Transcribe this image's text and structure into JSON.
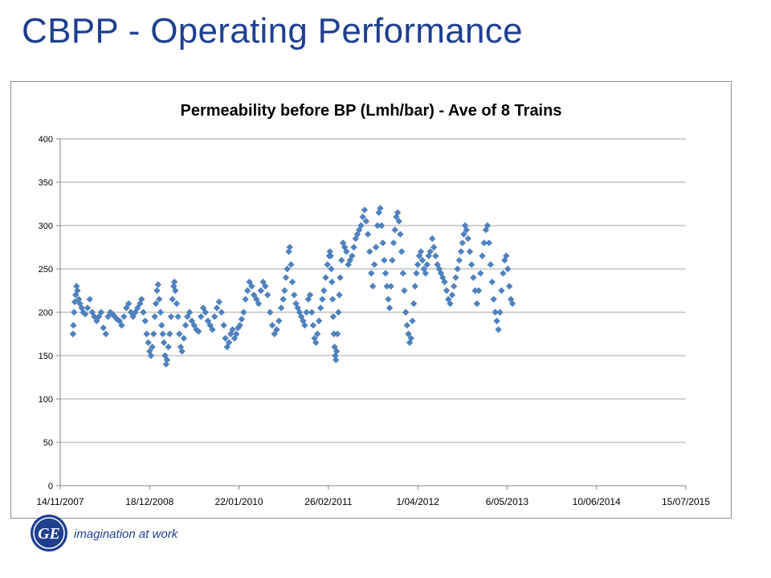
{
  "slide": {
    "title": "CBPP - Operating Performance",
    "tagline": "imagination at work",
    "logo_icon": "ge-monogram-logo",
    "logo_text": "GE",
    "brand_color": "#1f3f8f"
  },
  "chart_data": {
    "type": "scatter",
    "title": "Permeability before BP (Lmh/bar)  - Ave of 8 Trains",
    "xlabel": "",
    "ylabel": "",
    "x_axis_type": "date",
    "xlim": [
      "2007-11-14",
      "2015-07-15"
    ],
    "ylim": [
      0,
      400
    ],
    "x_ticks": [
      "14/11/2007",
      "18/12/2008",
      "22/01/2010",
      "26/02/2011",
      "1/04/2012",
      "6/05/2013",
      "10/06/2014",
      "15/07/2015"
    ],
    "y_ticks": [
      0,
      50,
      100,
      150,
      200,
      250,
      300,
      350,
      400
    ],
    "grid": "horizontal",
    "legend": "none",
    "marker": "diamond",
    "marker_color": "#4f81bd",
    "series": [
      {
        "points": [
          [
            "2008-01-10",
            175
          ],
          [
            "2008-01-12",
            185
          ],
          [
            "2008-01-15",
            200
          ],
          [
            "2008-01-18",
            212
          ],
          [
            "2008-01-22",
            220
          ],
          [
            "2008-01-26",
            230
          ],
          [
            "2008-01-30",
            225
          ],
          [
            "2008-02-05",
            215
          ],
          [
            "2008-02-10",
            210
          ],
          [
            "2008-02-18",
            205
          ],
          [
            "2008-02-25",
            200
          ],
          [
            "2008-03-05",
            198
          ],
          [
            "2008-03-15",
            205
          ],
          [
            "2008-03-25",
            215
          ],
          [
            "2008-04-05",
            200
          ],
          [
            "2008-04-15",
            195
          ],
          [
            "2008-04-25",
            190
          ],
          [
            "2008-05-05",
            195
          ],
          [
            "2008-05-15",
            200
          ],
          [
            "2008-05-25",
            182
          ],
          [
            "2008-06-05",
            175
          ],
          [
            "2008-06-15",
            195
          ],
          [
            "2008-06-25",
            200
          ],
          [
            "2008-07-05",
            198
          ],
          [
            "2008-07-15",
            195
          ],
          [
            "2008-07-25",
            192
          ],
          [
            "2008-08-05",
            190
          ],
          [
            "2008-08-15",
            185
          ],
          [
            "2008-08-25",
            195
          ],
          [
            "2008-09-05",
            205
          ],
          [
            "2008-09-15",
            210
          ],
          [
            "2008-09-25",
            200
          ],
          [
            "2008-10-05",
            195
          ],
          [
            "2008-10-15",
            200
          ],
          [
            "2008-10-25",
            205
          ],
          [
            "2008-11-05",
            210
          ],
          [
            "2008-11-12",
            215
          ],
          [
            "2008-11-20",
            200
          ],
          [
            "2008-11-28",
            190
          ],
          [
            "2008-12-05",
            175
          ],
          [
            "2008-12-12",
            165
          ],
          [
            "2008-12-18",
            155
          ],
          [
            "2008-12-24",
            150
          ],
          [
            "2008-12-30",
            160
          ],
          [
            "2009-01-05",
            175
          ],
          [
            "2009-01-10",
            195
          ],
          [
            "2009-01-15",
            210
          ],
          [
            "2009-01-20",
            225
          ],
          [
            "2009-01-25",
            232
          ],
          [
            "2009-01-30",
            215
          ],
          [
            "2009-02-05",
            200
          ],
          [
            "2009-02-10",
            185
          ],
          [
            "2009-02-15",
            175
          ],
          [
            "2009-02-20",
            165
          ],
          [
            "2009-02-25",
            150
          ],
          [
            "2009-03-02",
            140
          ],
          [
            "2009-03-06",
            145
          ],
          [
            "2009-03-12",
            160
          ],
          [
            "2009-03-18",
            175
          ],
          [
            "2009-03-24",
            195
          ],
          [
            "2009-03-30",
            215
          ],
          [
            "2009-04-05",
            230
          ],
          [
            "2009-04-08",
            235
          ],
          [
            "2009-04-12",
            225
          ],
          [
            "2009-04-18",
            210
          ],
          [
            "2009-04-24",
            195
          ],
          [
            "2009-04-30",
            175
          ],
          [
            "2009-05-06",
            160
          ],
          [
            "2009-05-12",
            155
          ],
          [
            "2009-05-20",
            170
          ],
          [
            "2009-05-28",
            185
          ],
          [
            "2009-06-05",
            195
          ],
          [
            "2009-06-15",
            200
          ],
          [
            "2009-06-25",
            190
          ],
          [
            "2009-07-05",
            185
          ],
          [
            "2009-07-15",
            180
          ],
          [
            "2009-07-25",
            178
          ],
          [
            "2009-08-05",
            195
          ],
          [
            "2009-08-15",
            205
          ],
          [
            "2009-08-25",
            200
          ],
          [
            "2009-09-05",
            190
          ],
          [
            "2009-09-15",
            185
          ],
          [
            "2009-09-25",
            180
          ],
          [
            "2009-10-05",
            195
          ],
          [
            "2009-10-15",
            205
          ],
          [
            "2009-10-25",
            212
          ],
          [
            "2009-11-05",
            200
          ],
          [
            "2009-11-15",
            185
          ],
          [
            "2009-11-22",
            170
          ],
          [
            "2009-11-30",
            160
          ],
          [
            "2009-12-08",
            165
          ],
          [
            "2009-12-16",
            175
          ],
          [
            "2009-12-24",
            180
          ],
          [
            "2010-01-02",
            170
          ],
          [
            "2010-01-10",
            175
          ],
          [
            "2010-01-18",
            182
          ],
          [
            "2010-01-26",
            185
          ],
          [
            "2010-02-03",
            192
          ],
          [
            "2010-02-12",
            200
          ],
          [
            "2010-02-20",
            215
          ],
          [
            "2010-03-01",
            225
          ],
          [
            "2010-03-10",
            235
          ],
          [
            "2010-03-20",
            230
          ],
          [
            "2010-03-30",
            220
          ],
          [
            "2010-04-10",
            215
          ],
          [
            "2010-04-20",
            210
          ],
          [
            "2010-04-30",
            225
          ],
          [
            "2010-05-10",
            235
          ],
          [
            "2010-05-20",
            230
          ],
          [
            "2010-05-30",
            220
          ],
          [
            "2010-06-10",
            200
          ],
          [
            "2010-06-20",
            185
          ],
          [
            "2010-06-30",
            175
          ],
          [
            "2010-07-10",
            180
          ],
          [
            "2010-07-20",
            190
          ],
          [
            "2010-07-30",
            205
          ],
          [
            "2010-08-08",
            215
          ],
          [
            "2010-08-14",
            225
          ],
          [
            "2010-08-20",
            240
          ],
          [
            "2010-08-26",
            250
          ],
          [
            "2010-09-02",
            270
          ],
          [
            "2010-09-06",
            275
          ],
          [
            "2010-09-12",
            255
          ],
          [
            "2010-09-18",
            235
          ],
          [
            "2010-09-26",
            220
          ],
          [
            "2010-10-04",
            210
          ],
          [
            "2010-10-12",
            205
          ],
          [
            "2010-10-20",
            200
          ],
          [
            "2010-10-28",
            195
          ],
          [
            "2010-11-05",
            190
          ],
          [
            "2010-11-12",
            185
          ],
          [
            "2010-11-20",
            200
          ],
          [
            "2010-11-28",
            215
          ],
          [
            "2010-12-06",
            220
          ],
          [
            "2010-12-14",
            200
          ],
          [
            "2010-12-20",
            185
          ],
          [
            "2010-12-26",
            170
          ],
          [
            "2011-01-01",
            165
          ],
          [
            "2011-01-08",
            175
          ],
          [
            "2011-01-15",
            190
          ],
          [
            "2011-01-22",
            205
          ],
          [
            "2011-01-30",
            215
          ],
          [
            "2011-02-06",
            225
          ],
          [
            "2011-02-14",
            240
          ],
          [
            "2011-02-22",
            255
          ],
          [
            "2011-03-02",
            265
          ],
          [
            "2011-03-05",
            270
          ],
          [
            "2011-03-08",
            265
          ],
          [
            "2011-03-11",
            250
          ],
          [
            "2011-03-14",
            235
          ],
          [
            "2011-03-17",
            215
          ],
          [
            "2011-03-20",
            195
          ],
          [
            "2011-03-23",
            175
          ],
          [
            "2011-03-26",
            160
          ],
          [
            "2011-03-29",
            150
          ],
          [
            "2011-04-01",
            145
          ],
          [
            "2011-04-04",
            155
          ],
          [
            "2011-04-08",
            175
          ],
          [
            "2011-04-12",
            200
          ],
          [
            "2011-04-16",
            220
          ],
          [
            "2011-04-20",
            240
          ],
          [
            "2011-04-26",
            260
          ],
          [
            "2011-05-03",
            280
          ],
          [
            "2011-05-10",
            275
          ],
          [
            "2011-05-18",
            270
          ],
          [
            "2011-05-26",
            255
          ],
          [
            "2011-06-03",
            260
          ],
          [
            "2011-06-12",
            265
          ],
          [
            "2011-06-20",
            275
          ],
          [
            "2011-06-28",
            285
          ],
          [
            "2011-07-06",
            290
          ],
          [
            "2011-07-14",
            295
          ],
          [
            "2011-07-22",
            300
          ],
          [
            "2011-07-30",
            310
          ],
          [
            "2011-08-07",
            318
          ],
          [
            "2011-08-14",
            305
          ],
          [
            "2011-08-22",
            290
          ],
          [
            "2011-08-30",
            270
          ],
          [
            "2011-09-06",
            245
          ],
          [
            "2011-09-13",
            230
          ],
          [
            "2011-09-20",
            255
          ],
          [
            "2011-09-27",
            275
          ],
          [
            "2011-10-04",
            300
          ],
          [
            "2011-10-10",
            315
          ],
          [
            "2011-10-16",
            320
          ],
          [
            "2011-10-22",
            300
          ],
          [
            "2011-10-28",
            280
          ],
          [
            "2011-11-03",
            260
          ],
          [
            "2011-11-09",
            245
          ],
          [
            "2011-11-15",
            230
          ],
          [
            "2011-11-21",
            215
          ],
          [
            "2011-11-27",
            205
          ],
          [
            "2011-12-03",
            230
          ],
          [
            "2011-12-09",
            260
          ],
          [
            "2011-12-15",
            280
          ],
          [
            "2011-12-21",
            295
          ],
          [
            "2011-12-27",
            310
          ],
          [
            "2012-01-02",
            315
          ],
          [
            "2012-01-08",
            305
          ],
          [
            "2012-01-14",
            290
          ],
          [
            "2012-01-20",
            270
          ],
          [
            "2012-01-26",
            245
          ],
          [
            "2012-02-01",
            225
          ],
          [
            "2012-02-07",
            200
          ],
          [
            "2012-02-13",
            185
          ],
          [
            "2012-02-19",
            175
          ],
          [
            "2012-02-25",
            165
          ],
          [
            "2012-03-02",
            170
          ],
          [
            "2012-03-08",
            190
          ],
          [
            "2012-03-14",
            210
          ],
          [
            "2012-03-20",
            230
          ],
          [
            "2012-03-26",
            245
          ],
          [
            "2012-04-01",
            255
          ],
          [
            "2012-04-08",
            265
          ],
          [
            "2012-04-15",
            270
          ],
          [
            "2012-04-22",
            260
          ],
          [
            "2012-04-29",
            250
          ],
          [
            "2012-05-06",
            245
          ],
          [
            "2012-05-13",
            255
          ],
          [
            "2012-05-20",
            265
          ],
          [
            "2012-05-27",
            270
          ],
          [
            "2012-06-05",
            285
          ],
          [
            "2012-06-12",
            275
          ],
          [
            "2012-06-20",
            265
          ],
          [
            "2012-06-28",
            255
          ],
          [
            "2012-07-06",
            250
          ],
          [
            "2012-07-14",
            245
          ],
          [
            "2012-07-22",
            240
          ],
          [
            "2012-07-30",
            235
          ],
          [
            "2012-08-08",
            225
          ],
          [
            "2012-08-16",
            215
          ],
          [
            "2012-08-24",
            210
          ],
          [
            "2012-09-02",
            220
          ],
          [
            "2012-09-10",
            230
          ],
          [
            "2012-09-18",
            240
          ],
          [
            "2012-09-26",
            250
          ],
          [
            "2012-10-04",
            260
          ],
          [
            "2012-10-12",
            270
          ],
          [
            "2012-10-18",
            280
          ],
          [
            "2012-10-24",
            290
          ],
          [
            "2012-10-30",
            300
          ],
          [
            "2012-11-05",
            295
          ],
          [
            "2012-11-12",
            285
          ],
          [
            "2012-11-20",
            270
          ],
          [
            "2012-11-28",
            255
          ],
          [
            "2012-12-06",
            240
          ],
          [
            "2012-12-14",
            225
          ],
          [
            "2012-12-22",
            210
          ],
          [
            "2012-12-30",
            225
          ],
          [
            "2013-01-07",
            245
          ],
          [
            "2013-01-15",
            265
          ],
          [
            "2013-01-23",
            280
          ],
          [
            "2013-01-31",
            295
          ],
          [
            "2013-02-07",
            300
          ],
          [
            "2013-02-14",
            280
          ],
          [
            "2013-02-21",
            255
          ],
          [
            "2013-02-28",
            235
          ],
          [
            "2013-03-07",
            215
          ],
          [
            "2013-03-14",
            200
          ],
          [
            "2013-03-21",
            190
          ],
          [
            "2013-03-28",
            180
          ],
          [
            "2013-04-04",
            200
          ],
          [
            "2013-04-11",
            225
          ],
          [
            "2013-04-18",
            245
          ],
          [
            "2013-04-25",
            260
          ],
          [
            "2013-05-02",
            265
          ],
          [
            "2013-05-09",
            250
          ],
          [
            "2013-05-16",
            230
          ],
          [
            "2013-05-23",
            215
          ],
          [
            "2013-05-30",
            210
          ]
        ]
      }
    ]
  }
}
